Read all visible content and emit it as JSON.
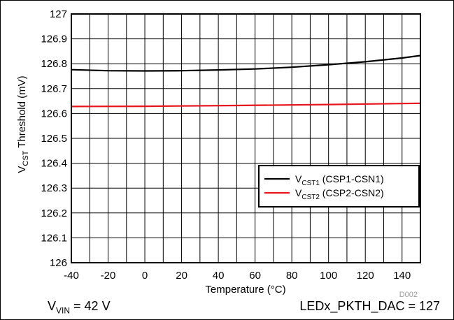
{
  "chart_data": {
    "type": "line",
    "title": "",
    "xlabel": "Temperature (°C)",
    "ylabel": {
      "prefix": "V",
      "sub": "CST",
      "suffix": " Threshold (mV)"
    },
    "xlim": [
      -40,
      150
    ],
    "ylim": [
      126,
      127
    ],
    "xticks": [
      -40,
      -20,
      0,
      20,
      40,
      60,
      80,
      100,
      120,
      140
    ],
    "yticks": [
      126,
      126.1,
      126.2,
      126.3,
      126.4,
      126.5,
      126.6,
      126.7,
      126.8,
      126.9,
      127
    ],
    "xtick_labels": [
      "-40",
      "-20",
      "0",
      "20",
      "40",
      "60",
      "80",
      "100",
      "120",
      "140"
    ],
    "ytick_labels": [
      "126",
      "126.1",
      "126.2",
      "126.3",
      "126.4",
      "126.5",
      "126.6",
      "126.7",
      "126.8",
      "126.9",
      "127"
    ],
    "grid": true,
    "legend_position": "right",
    "series": [
      {
        "name": {
          "prefix": "V",
          "sub": "CST1",
          "suffix": " (CSP1-CSN1)"
        },
        "color": "#000000",
        "x": [
          -40,
          -20,
          0,
          20,
          40,
          60,
          80,
          100,
          120,
          140,
          150
        ],
        "y": [
          126.776,
          126.772,
          126.771,
          126.772,
          126.775,
          126.779,
          126.786,
          126.796,
          126.808,
          126.823,
          126.833
        ]
      },
      {
        "name": {
          "prefix": "V",
          "sub": "CST2",
          "suffix": " (CSP2-CSN2)"
        },
        "color": "#e8141b",
        "x": [
          -40,
          0,
          50,
          100,
          150
        ],
        "y": [
          126.628,
          126.629,
          126.632,
          126.636,
          126.641
        ]
      }
    ],
    "annotation": "D002"
  },
  "footer": {
    "left": {
      "prefix": "V",
      "sub": "VIN",
      "suffix": " = 42 V"
    },
    "right": "LEDx_PKTH_DAC = 127"
  }
}
